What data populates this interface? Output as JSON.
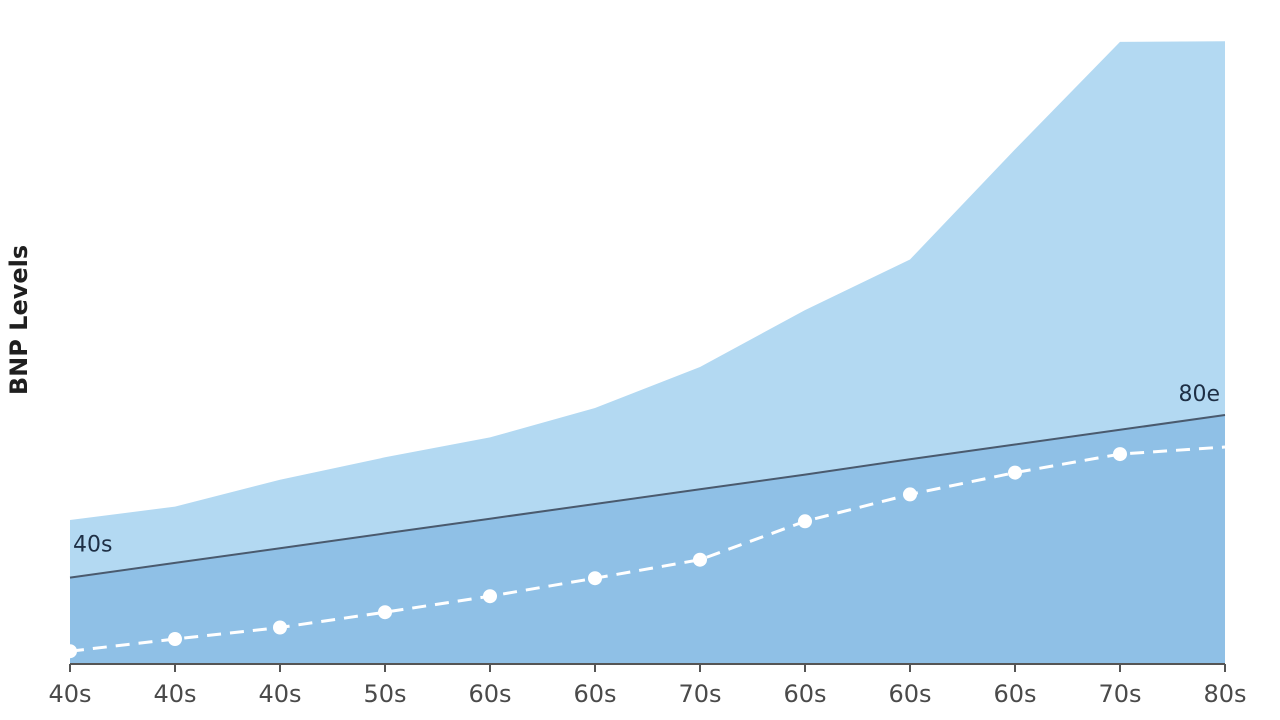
{
  "chart_data": {
    "type": "area",
    "title": "",
    "xlabel": "",
    "ylabel": "BNP Levels",
    "ylim": [
      0,
      100
    ],
    "grid": false,
    "categories": [
      "40s",
      "40s",
      "40s",
      "50s",
      "60s",
      "60s",
      "70s",
      "60s",
      "60s",
      "60s",
      "70s",
      "80s"
    ],
    "series": [
      {
        "type": "area",
        "color": "#b3d9f2",
        "values": [
          22.5,
          24.6,
          28.8,
          32.3,
          35.4,
          40.0,
          46.4,
          55.3,
          63.2,
          80.4,
          97.2,
          97.3
        ]
      },
      {
        "type": "area-line",
        "color": "#8fc0e6",
        "line_color": "#4a5a6e",
        "values": [
          13.5,
          15.8,
          18.1,
          20.4,
          22.7,
          25.0,
          27.3,
          29.6,
          32.0,
          34.3,
          36.6,
          38.9
        ]
      },
      {
        "type": "dashed-line-markers",
        "color": "#ffffff",
        "values": [
          2.0,
          3.9,
          5.7,
          8.1,
          10.6,
          13.4,
          16.3,
          22.3,
          26.5,
          29.9,
          32.8,
          33.9
        ]
      }
    ],
    "annotations": [
      {
        "text": "40s",
        "series_index": 1,
        "category_index": 0
      },
      {
        "text": "80e",
        "series_index": 1,
        "category_index": 11
      }
    ]
  }
}
